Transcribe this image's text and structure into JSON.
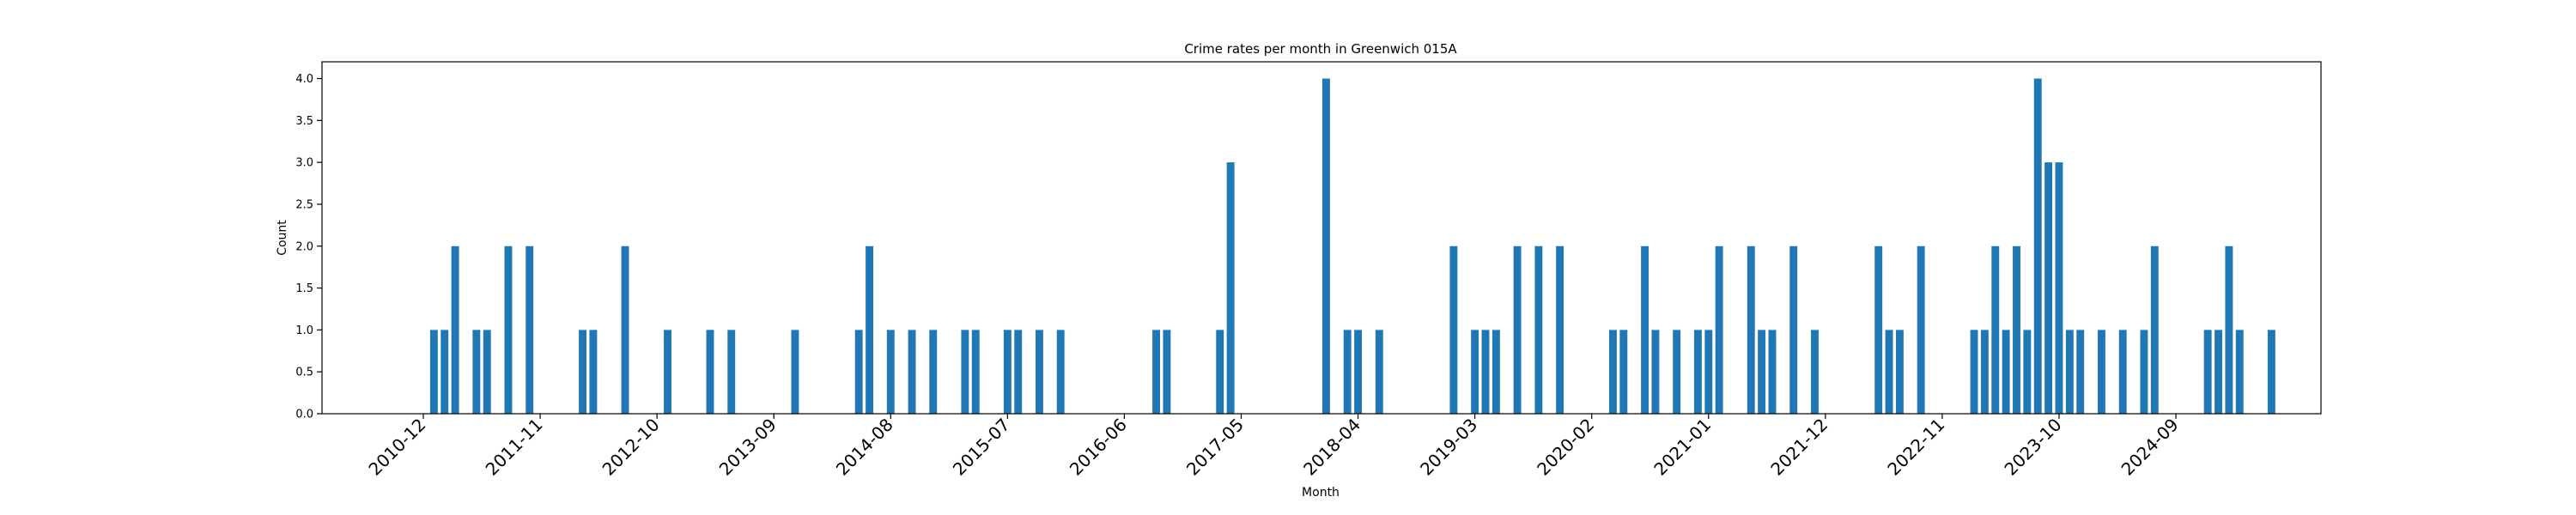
{
  "chart_data": {
    "type": "bar",
    "title": "Crime rates per month in Greenwich 015A",
    "xlabel": "Month",
    "ylabel": "Count",
    "ylim": [
      0,
      4.2
    ],
    "yticks": [
      "0.0",
      "0.5",
      "1.0",
      "1.5",
      "2.0",
      "2.5",
      "3.0",
      "3.5",
      "4.0"
    ],
    "xticks": [
      "2010-12",
      "2011-11",
      "2012-10",
      "2013-09",
      "2014-08",
      "2015-07",
      "2016-06",
      "2017-05",
      "2018-04",
      "2019-03",
      "2020-02",
      "2021-01",
      "2021-12",
      "2022-11",
      "2023-10",
      "2024-09"
    ],
    "bar_color": "#1f77b4",
    "grid": false,
    "x": [
      "2011-01",
      "2011-02",
      "2011-03",
      "2011-05",
      "2011-06",
      "2011-08",
      "2011-10",
      "2012-03",
      "2012-04",
      "2012-07",
      "2012-11",
      "2013-03",
      "2013-05",
      "2013-11",
      "2014-05",
      "2014-06",
      "2014-08",
      "2014-10",
      "2014-12",
      "2015-03",
      "2015-04",
      "2015-07",
      "2015-08",
      "2015-10",
      "2015-12",
      "2016-09",
      "2016-10",
      "2017-03",
      "2017-04",
      "2018-01",
      "2018-03",
      "2018-04",
      "2018-06",
      "2019-01",
      "2019-03",
      "2019-04",
      "2019-05",
      "2019-07",
      "2019-09",
      "2019-11",
      "2020-04",
      "2020-05",
      "2020-07",
      "2020-08",
      "2020-10",
      "2020-12",
      "2021-01",
      "2021-02",
      "2021-05",
      "2021-06",
      "2021-07",
      "2021-09",
      "2021-11",
      "2022-05",
      "2022-06",
      "2022-07",
      "2022-09",
      "2023-02",
      "2023-03",
      "2023-04",
      "2023-05",
      "2023-06",
      "2023-07",
      "2023-08",
      "2023-09",
      "2023-10",
      "2023-11",
      "2023-12",
      "2024-02",
      "2024-04",
      "2024-06",
      "2024-07",
      "2024-12",
      "2025-01",
      "2025-02",
      "2025-03",
      "2025-06"
    ],
    "values": [
      1,
      1,
      2,
      1,
      1,
      2,
      2,
      1,
      1,
      2,
      1,
      1,
      1,
      1,
      1,
      2,
      1,
      1,
      1,
      1,
      1,
      1,
      1,
      1,
      1,
      1,
      1,
      1,
      3,
      4,
      1,
      1,
      1,
      2,
      1,
      1,
      1,
      2,
      2,
      2,
      1,
      1,
      2,
      1,
      1,
      1,
      1,
      2,
      2,
      1,
      1,
      2,
      1,
      2,
      1,
      1,
      2,
      1,
      1,
      2,
      1,
      2,
      1,
      4,
      3,
      3,
      1,
      1,
      1,
      1,
      1,
      2,
      1,
      1,
      2,
      1,
      1
    ]
  }
}
